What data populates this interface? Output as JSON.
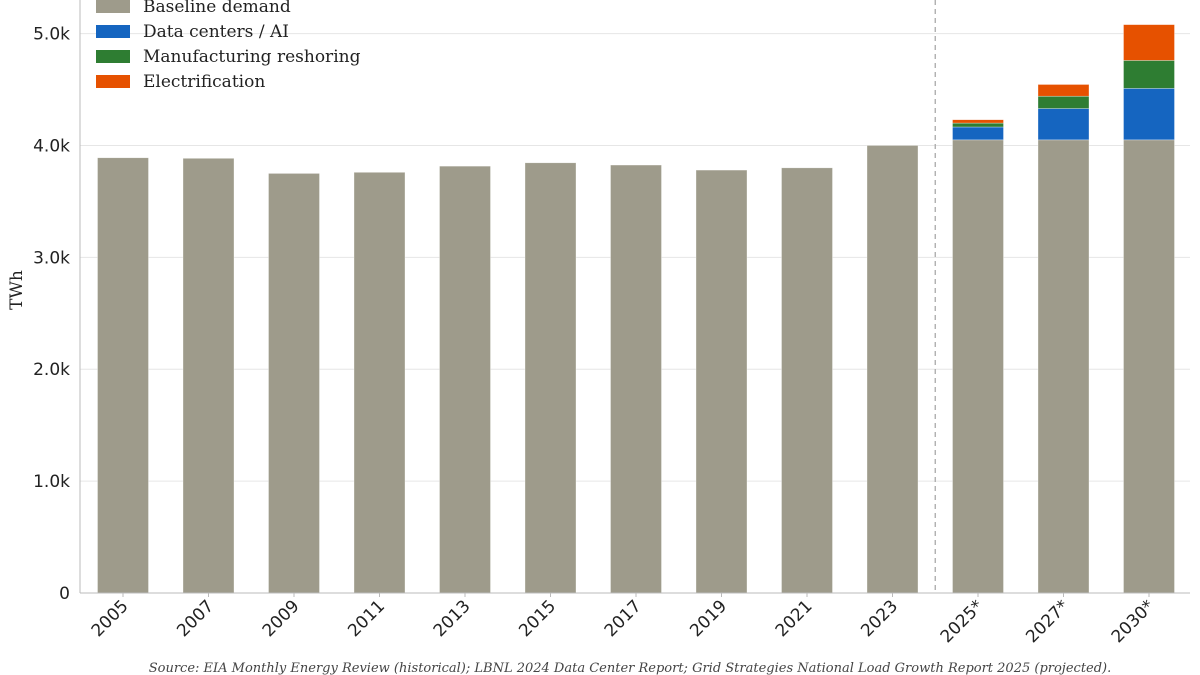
{
  "chart_data": {
    "type": "bar",
    "stacked": true,
    "categories": [
      "2005",
      "2007",
      "2009",
      "2011",
      "2013",
      "2015",
      "2017",
      "2019",
      "2021",
      "2023",
      "2025*",
      "2027*",
      "2030*"
    ],
    "series": [
      {
        "name": "Baseline demand",
        "color": "#9e9b8b",
        "values": [
          3890,
          3885,
          3750,
          3760,
          3815,
          3845,
          3825,
          3780,
          3800,
          4000,
          4050,
          4050,
          4050
        ]
      },
      {
        "name": "Data centers / AI",
        "color": "#1565c0",
        "values": [
          0,
          0,
          0,
          0,
          0,
          0,
          0,
          0,
          0,
          0,
          115,
          280,
          460
        ]
      },
      {
        "name": "Manufacturing reshoring",
        "color": "#2e7d32",
        "values": [
          0,
          0,
          0,
          0,
          0,
          0,
          0,
          0,
          0,
          0,
          35,
          110,
          250
        ]
      },
      {
        "name": "Electrification",
        "color": "#e65100",
        "values": [
          0,
          0,
          0,
          0,
          0,
          0,
          0,
          0,
          0,
          0,
          30,
          105,
          320
        ]
      }
    ],
    "ylabel": "TWh",
    "xlabel": "",
    "ylim": [
      0,
      5300
    ],
    "yticks": [
      0,
      1000,
      2000,
      3000,
      4000,
      5000
    ],
    "ytick_labels": [
      "0",
      "1.0k",
      "2.0k",
      "3.0k",
      "4.0k",
      "5.0k"
    ],
    "grid": true,
    "legend_placement": "top-left",
    "projection_divider_after": "2023",
    "source_note": "Source: EIA Monthly Energy Review (historical); LBNL 2024 Data Center Report; Grid Strategies National Load Growth Report 2025 (projected)."
  }
}
